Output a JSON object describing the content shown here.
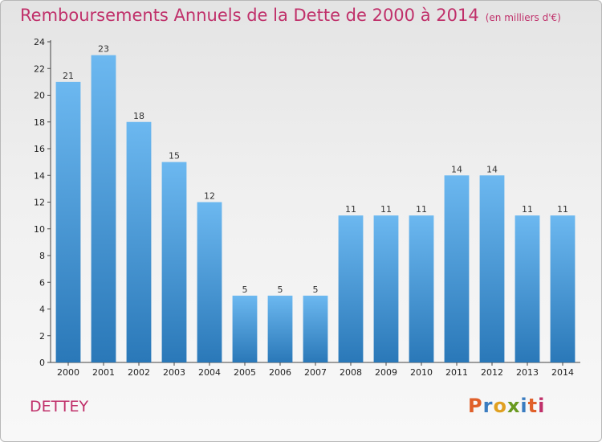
{
  "chart_data": {
    "type": "bar",
    "title": "Remboursements Annuels de la Dette de 2000 à 2014",
    "subtitle": "(en milliers d'€)",
    "categories": [
      "2000",
      "2001",
      "2002",
      "2003",
      "2004",
      "2005",
      "2006",
      "2007",
      "2008",
      "2009",
      "2010",
      "2011",
      "2012",
      "2013",
      "2014"
    ],
    "values": [
      21,
      23,
      18,
      15,
      12,
      5,
      5,
      5,
      11,
      11,
      11,
      14,
      14,
      11,
      11
    ],
    "ylim": [
      0,
      24
    ],
    "yticks": [
      0,
      2,
      4,
      6,
      8,
      10,
      12,
      14,
      16,
      18,
      20,
      22,
      24
    ],
    "grid": false,
    "bar_color": "#4a9ee0",
    "bar_color_light": "#6cb8f0",
    "bar_color_dark": "#2a78b8"
  },
  "footer": {
    "commune": "DETTEY",
    "logo": "Proxiti"
  },
  "colors": {
    "title": "#c0306a",
    "logo_letters": [
      "#e0602a",
      "#3a7cc0",
      "#e0a020",
      "#6a9a20",
      "#3a7cc0",
      "#e0602a",
      "#c0306a"
    ]
  }
}
